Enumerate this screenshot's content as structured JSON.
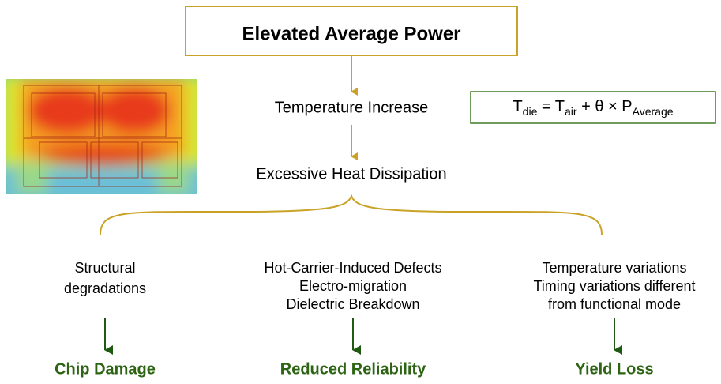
{
  "header": {
    "title": "Elevated Average Power"
  },
  "steps": [
    "Temperature Increase",
    "Excessive Heat Dissipation"
  ],
  "formula": {
    "t1": "T",
    "sub1": "die",
    "t2": " = T",
    "sub2": "air",
    "t3": " + θ × P",
    "sub3": "Average"
  },
  "columns": [
    {
      "lines": [
        "Structural",
        "degradations"
      ],
      "outcome": "Chip Damage"
    },
    {
      "lines": [
        "Hot-Carrier-Induced Defects",
        "Electro-migration",
        "Dielectric Breakdown"
      ],
      "outcome": "Reduced Reliability"
    },
    {
      "lines": [
        "Temperature variations",
        "Timing variations different",
        "from functional mode"
      ],
      "outcome": "Yield Loss"
    }
  ]
}
